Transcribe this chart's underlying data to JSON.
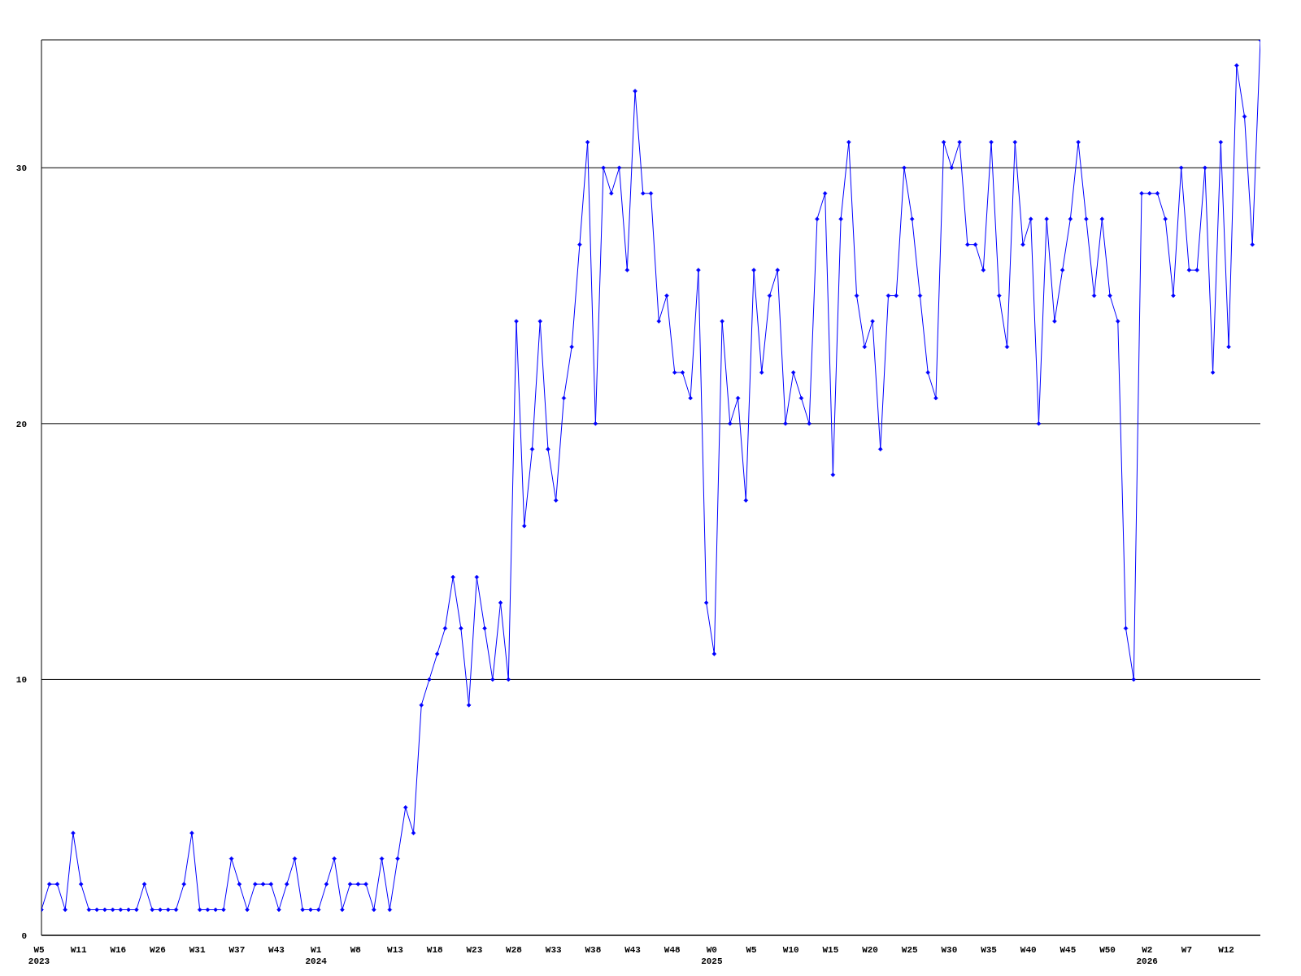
{
  "chart_data": {
    "type": "line",
    "categories": [
      "W5\n2023",
      null,
      null,
      null,
      null,
      "W11",
      null,
      null,
      null,
      null,
      "W16",
      null,
      null,
      null,
      null,
      "W26",
      null,
      null,
      null,
      null,
      "W31",
      null,
      null,
      null,
      null,
      "W37",
      null,
      null,
      null,
      null,
      "W43",
      null,
      null,
      null,
      null,
      "W1\n2024",
      null,
      null,
      null,
      null,
      "W8",
      null,
      null,
      null,
      null,
      "W13",
      null,
      null,
      null,
      null,
      "W18",
      null,
      null,
      null,
      null,
      "W23",
      null,
      null,
      null,
      null,
      "W28",
      null,
      null,
      null,
      null,
      "W33",
      null,
      null,
      null,
      null,
      "W38",
      null,
      null,
      null,
      null,
      "W43",
      null,
      null,
      null,
      null,
      "W48",
      null,
      null,
      null,
      null,
      "W0\n2025",
      null,
      null,
      null,
      null,
      "W5",
      null,
      null,
      null,
      null,
      "W10",
      null,
      null,
      null,
      null,
      "W15",
      null,
      null,
      null,
      null,
      "W20",
      null,
      null,
      null,
      null,
      "W25",
      null,
      null,
      null,
      null,
      "W30",
      null,
      null,
      null,
      null,
      "W35",
      null,
      null,
      null,
      null,
      "W40",
      null,
      null,
      null,
      null,
      "W45",
      null,
      null,
      null,
      null,
      "W50",
      null,
      null,
      null,
      null,
      "W2\n2026",
      null,
      null,
      null,
      null,
      "W7",
      null,
      null,
      null,
      null,
      "W12",
      null,
      null,
      null,
      null
    ],
    "values": [
      1,
      2,
      2,
      1,
      4,
      2,
      1,
      1,
      1,
      1,
      1,
      1,
      1,
      2,
      1,
      1,
      1,
      1,
      2,
      4,
      1,
      1,
      1,
      1,
      3,
      2,
      1,
      2,
      2,
      2,
      1,
      2,
      3,
      1,
      1,
      1,
      2,
      3,
      1,
      2,
      2,
      2,
      1,
      3,
      1,
      3,
      5,
      4,
      9,
      10,
      11,
      12,
      14,
      12,
      9,
      14,
      12,
      10,
      13,
      10,
      24,
      16,
      19,
      24,
      19,
      17,
      21,
      23,
      27,
      31,
      20,
      30,
      29,
      30,
      26,
      33,
      29,
      29,
      24,
      25,
      22,
      22,
      21,
      26,
      13,
      11,
      24,
      20,
      21,
      17,
      26,
      22,
      25,
      26,
      20,
      22,
      21,
      20,
      28,
      29,
      18,
      28,
      31,
      25,
      23,
      24,
      19,
      25,
      25,
      30,
      28,
      25,
      22,
      21,
      31,
      30,
      31,
      27,
      27,
      26,
      31,
      25,
      23,
      31,
      27,
      28,
      20,
      28,
      24,
      26,
      28,
      31,
      28,
      25,
      28,
      25,
      24,
      12,
      10,
      29,
      29,
      29,
      28,
      25,
      30,
      26,
      26,
      30,
      22,
      31,
      23,
      34,
      32,
      27,
      35
    ],
    "color": "#0000ff",
    "marker": "diamond",
    "ylim": [
      0,
      35
    ],
    "yticks": [
      0,
      10,
      20,
      30
    ],
    "grid": "y"
  }
}
